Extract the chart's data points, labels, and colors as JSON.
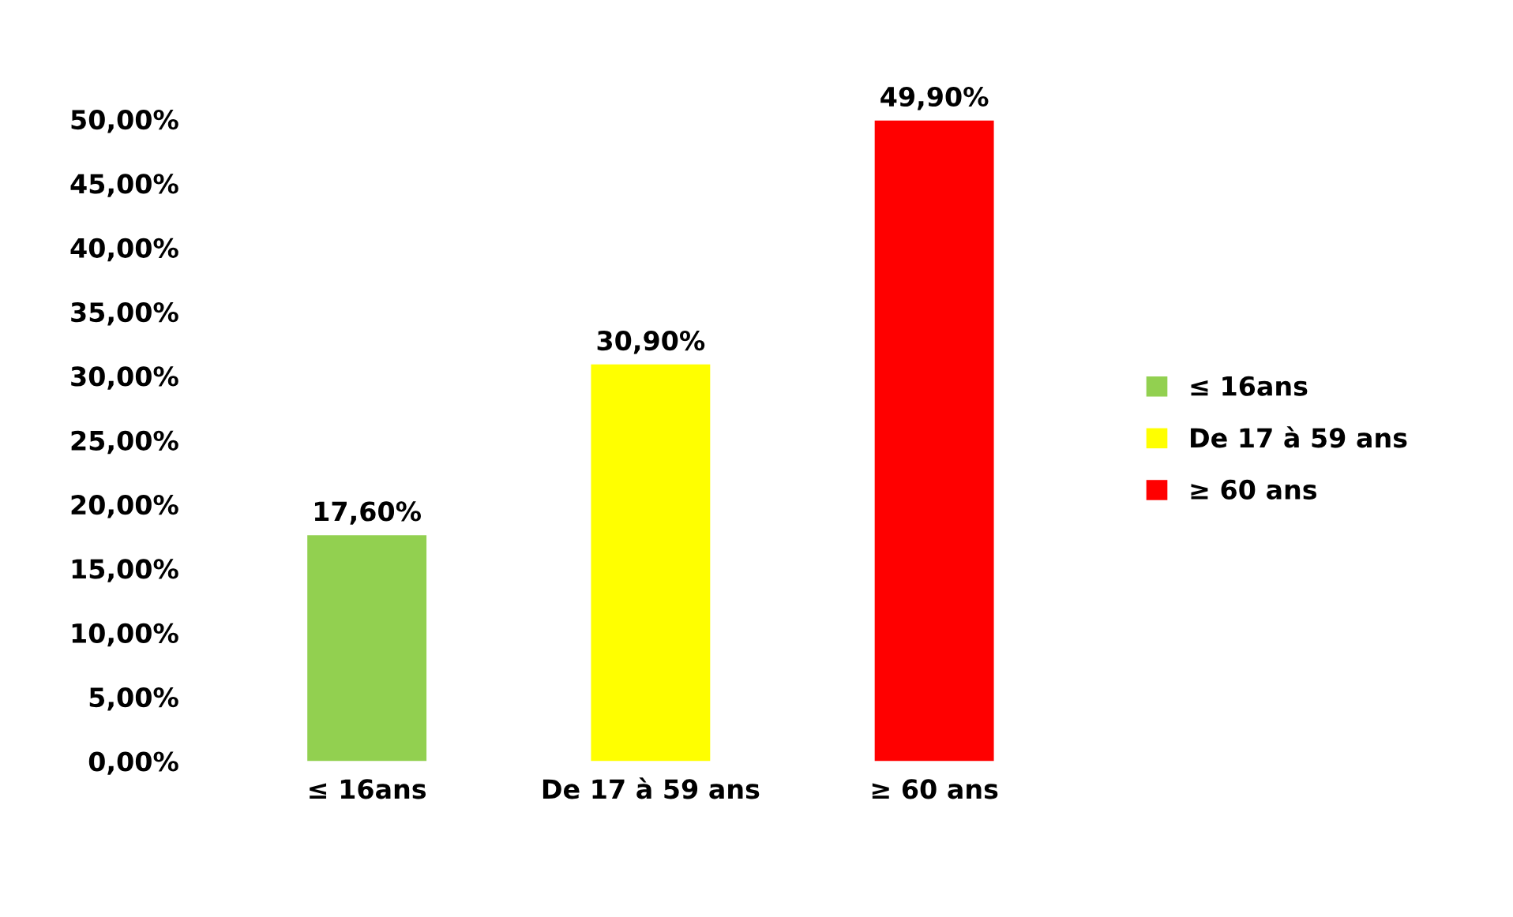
{
  "chart_data": {
    "type": "bar",
    "categories": [
      "≤ 16ans",
      "De 17 à 59 ans",
      "≥ 60 ans"
    ],
    "series": [
      {
        "name": "≤ 16ans",
        "color": "#92d050",
        "values": [
          17.6,
          null,
          null
        ],
        "value_labels": [
          "17,60%",
          null,
          null
        ]
      },
      {
        "name": "De 17 à 59 ans",
        "color": "#ffff00",
        "values": [
          null,
          30.9,
          null
        ],
        "value_labels": [
          null,
          "30,90%",
          null
        ]
      },
      {
        "name": "≥ 60 ans",
        "color": "#ff0000",
        "values": [
          null,
          null,
          49.9
        ],
        "value_labels": [
          null,
          null,
          "49,90%"
        ]
      }
    ],
    "ylim": [
      0,
      50
    ],
    "yticks": [
      {
        "value": 0,
        "label": "0,00%"
      },
      {
        "value": 5,
        "label": "5,00%"
      },
      {
        "value": 10,
        "label": "10,00%"
      },
      {
        "value": 15,
        "label": "15,00%"
      },
      {
        "value": 20,
        "label": "20,00%"
      },
      {
        "value": 25,
        "label": "25,00%"
      },
      {
        "value": 30,
        "label": "30,00%"
      },
      {
        "value": 35,
        "label": "35,00%"
      },
      {
        "value": 40,
        "label": "40,00%"
      },
      {
        "value": 45,
        "label": "45,00%"
      },
      {
        "value": 50,
        "label": "50,00%"
      }
    ],
    "grid": false,
    "legend": "right"
  }
}
